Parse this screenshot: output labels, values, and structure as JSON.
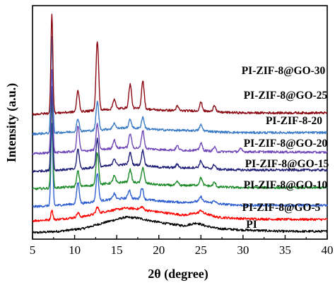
{
  "chart_data": {
    "type": "line",
    "xlabel": "2θ (degree)",
    "ylabel": "Intensity (a.u.)",
    "xlim": [
      5,
      40
    ],
    "x_ticks": [
      5,
      10,
      15,
      20,
      25,
      30,
      35,
      40
    ],
    "y_ticks_shown": false,
    "grid": false,
    "legend": "inline labels at right of each curve",
    "series": [
      {
        "name": "PI",
        "color": "#000000",
        "baseline": 0,
        "background": [
          [
            5,
            0
          ],
          [
            8,
            2
          ],
          [
            11,
            6
          ],
          [
            14,
            16
          ],
          [
            16,
            22
          ],
          [
            17.5,
            21
          ],
          [
            19,
            17
          ],
          [
            21,
            13
          ],
          [
            23,
            10
          ],
          [
            24.5,
            14
          ],
          [
            25.5,
            10
          ],
          [
            27,
            6
          ],
          [
            30,
            4
          ],
          [
            35,
            2
          ],
          [
            40,
            2
          ]
        ],
        "peaks": []
      },
      {
        "name": "PI-ZIF-8@GO-5",
        "color": "#ff0000",
        "baseline": 17,
        "background": [
          [
            5,
            0
          ],
          [
            8,
            2
          ],
          [
            11,
            6
          ],
          [
            14,
            14
          ],
          [
            16,
            18
          ],
          [
            17.5,
            17
          ],
          [
            19,
            14
          ],
          [
            21,
            11
          ],
          [
            23,
            8
          ],
          [
            25,
            12
          ],
          [
            27,
            5
          ],
          [
            30,
            3
          ],
          [
            35,
            2
          ],
          [
            40,
            2
          ]
        ],
        "peaks": [
          [
            7.3,
            14
          ],
          [
            10.4,
            6
          ],
          [
            12.7,
            9
          ],
          [
            18.0,
            4
          ],
          [
            25.0,
            3
          ]
        ]
      },
      {
        "name": "PI-ZIF-8@GO-10",
        "color": "#2f5fd0",
        "baseline": 37,
        "background": [
          [
            5,
            0
          ],
          [
            8,
            2
          ],
          [
            11,
            5
          ],
          [
            14,
            10
          ],
          [
            16,
            12
          ],
          [
            18,
            11
          ],
          [
            20,
            8
          ],
          [
            23,
            6
          ],
          [
            25,
            8
          ],
          [
            27,
            4
          ],
          [
            30,
            2
          ],
          [
            35,
            2
          ],
          [
            40,
            2
          ]
        ],
        "peaks": [
          [
            7.3,
            115
          ],
          [
            10.4,
            30
          ],
          [
            12.7,
            40
          ],
          [
            14.7,
            8
          ],
          [
            16.5,
            12
          ],
          [
            18.0,
            16
          ],
          [
            25.0,
            6
          ],
          [
            26.6,
            4
          ]
        ]
      },
      {
        "name": "PI-ZIF-8@GO-15",
        "color": "#1d8a2a",
        "baseline": 62,
        "background": [
          [
            5,
            0
          ],
          [
            8,
            2
          ],
          [
            11,
            4
          ],
          [
            14,
            8
          ],
          [
            16,
            10
          ],
          [
            18,
            9
          ],
          [
            20,
            6
          ],
          [
            23,
            5
          ],
          [
            25,
            6
          ],
          [
            27,
            3
          ],
          [
            30,
            2
          ],
          [
            40,
            2
          ]
        ],
        "peaks": [
          [
            7.3,
            125
          ],
          [
            10.4,
            22
          ],
          [
            12.7,
            46
          ],
          [
            14.7,
            10
          ],
          [
            16.6,
            18
          ],
          [
            18.1,
            22
          ],
          [
            22.2,
            5
          ],
          [
            25.0,
            10
          ],
          [
            26.6,
            6
          ]
        ]
      },
      {
        "name": "PI-ZIF-8@GO-20",
        "color": "#1f1f78",
        "baseline": 87,
        "background": [
          [
            5,
            0
          ],
          [
            8,
            2
          ],
          [
            11,
            4
          ],
          [
            14,
            8
          ],
          [
            16,
            10
          ],
          [
            18,
            9
          ],
          [
            20,
            6
          ],
          [
            23,
            5
          ],
          [
            25,
            6
          ],
          [
            27,
            3
          ],
          [
            30,
            2
          ],
          [
            40,
            2
          ]
        ],
        "peaks": [
          [
            7.3,
            118
          ],
          [
            10.4,
            28
          ],
          [
            12.7,
            40
          ],
          [
            14.7,
            10
          ],
          [
            16.6,
            17
          ],
          [
            18.1,
            21
          ],
          [
            22.2,
            5
          ],
          [
            25.0,
            9
          ],
          [
            26.6,
            6
          ]
        ]
      },
      {
        "name": "PI-ZIF-8-20",
        "color": "#7047b8",
        "baseline": 112,
        "background": [
          [
            5,
            0
          ],
          [
            8,
            2
          ],
          [
            11,
            4
          ],
          [
            14,
            7
          ],
          [
            16,
            9
          ],
          [
            18,
            8
          ],
          [
            20,
            6
          ],
          [
            23,
            5
          ],
          [
            25,
            5
          ],
          [
            27,
            3
          ],
          [
            30,
            3
          ],
          [
            40,
            2
          ]
        ],
        "peaks": [
          [
            7.3,
            118
          ],
          [
            10.4,
            36
          ],
          [
            12.7,
            36
          ],
          [
            14.7,
            12
          ],
          [
            16.6,
            20
          ],
          [
            18.1,
            25
          ],
          [
            22.2,
            6
          ],
          [
            25.0,
            10
          ],
          [
            26.6,
            6
          ],
          [
            29.7,
            4
          ]
        ]
      },
      {
        "name": "PI-ZIF-8@GO-25",
        "color": "#3b7ac5",
        "baseline": 140,
        "background": [
          [
            5,
            0
          ],
          [
            8,
            2
          ],
          [
            11,
            4
          ],
          [
            14,
            7
          ],
          [
            16,
            9
          ],
          [
            18,
            8
          ],
          [
            20,
            6
          ],
          [
            23,
            5
          ],
          [
            25,
            5
          ],
          [
            27,
            3
          ],
          [
            30,
            2
          ],
          [
            40,
            2
          ]
        ],
        "peaks": [
          [
            7.3,
            135
          ],
          [
            10.4,
            18
          ],
          [
            12.7,
            40
          ],
          [
            14.7,
            8
          ],
          [
            16.6,
            12
          ],
          [
            18.1,
            16
          ],
          [
            25.0,
            8
          ]
        ]
      },
      {
        "name": "PI-ZIF-8@GO-30",
        "color": "#8b0a14",
        "baseline": 168,
        "background": [
          [
            5,
            0
          ],
          [
            8,
            2
          ],
          [
            11,
            4
          ],
          [
            14,
            7
          ],
          [
            16,
            9
          ],
          [
            18,
            8
          ],
          [
            20,
            6
          ],
          [
            23,
            5
          ],
          [
            25,
            5
          ],
          [
            27,
            3
          ],
          [
            30,
            2
          ],
          [
            40,
            2
          ]
        ],
        "peaks": [
          [
            7.3,
            142
          ],
          [
            10.4,
            30
          ],
          [
            12.7,
            98
          ],
          [
            14.7,
            14
          ],
          [
            16.6,
            34
          ],
          [
            18.1,
            40
          ],
          [
            22.2,
            6
          ],
          [
            25.0,
            12
          ],
          [
            26.6,
            10
          ]
        ]
      }
    ]
  }
}
